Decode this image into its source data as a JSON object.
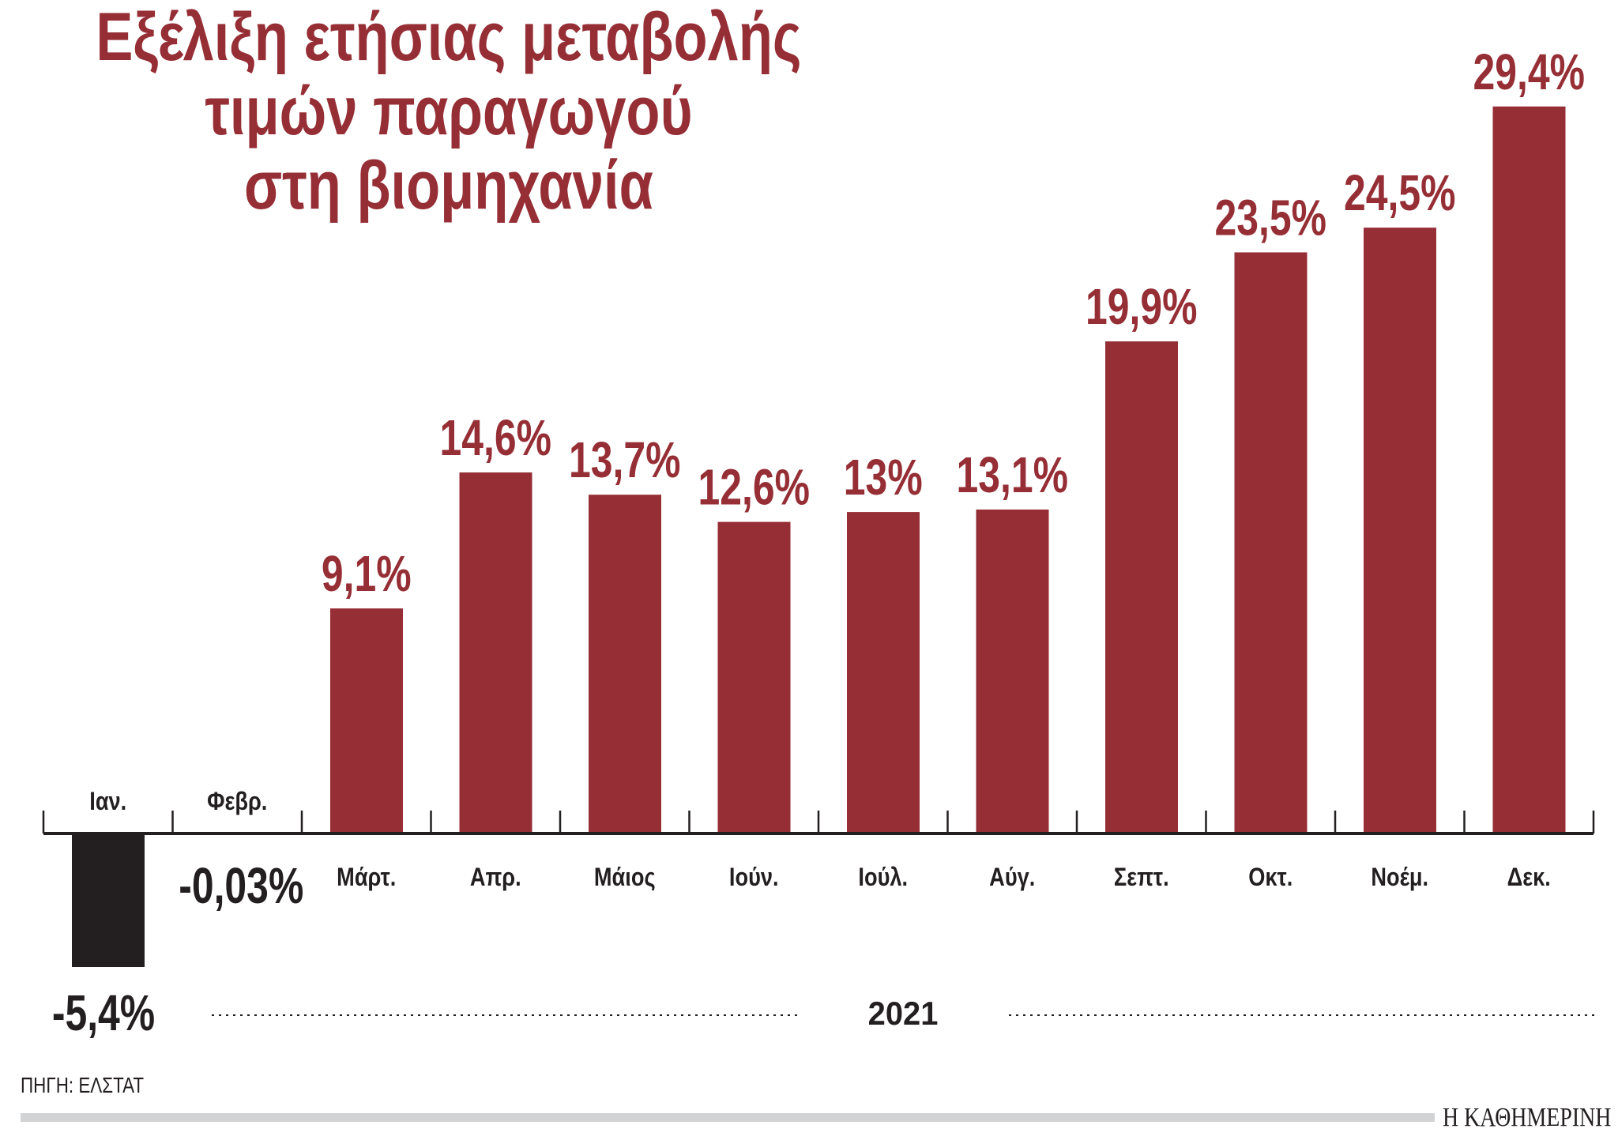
{
  "title_lines": [
    "Εξέλιξη ετήσιας μεταβολής",
    "τιμών παραγωγού",
    "στη βιομηχανία"
  ],
  "source": "ΠΗΓΗ: ΕΛΣΤΑΤ",
  "logo": "Η ΚΑΘΗΜΕΡΙΝΗ",
  "colors": {
    "positive": "#962e35",
    "negative": "#231f20",
    "text": "#231f20",
    "title": "#962e35"
  },
  "chart_data": {
    "type": "bar",
    "title": "Εξέλιξη ετήσιας μεταβολής τιμών παραγωγού στη βιομηχανία",
    "xlabel": "2021",
    "ylabel": "",
    "categories": [
      "Ιαν.",
      "Φεβρ.",
      "Μάρτ.",
      "Απρ.",
      "Μάιος",
      "Ιούν.",
      "Ιούλ.",
      "Αύγ.",
      "Σεπτ.",
      "Οκτ.",
      "Νοέμ.",
      "Δεκ."
    ],
    "values": [
      -5.4,
      -0.03,
      9.1,
      14.6,
      13.7,
      12.6,
      13,
      13.1,
      19.9,
      23.5,
      24.5,
      29.4
    ],
    "data_labels": [
      "-5,4%",
      "-0,03%",
      "9,1%",
      "14,6%",
      "13,7%",
      "12,6%",
      "13%",
      "13,1%",
      "19,9%",
      "23,5%",
      "24,5%",
      "29,4%"
    ],
    "ylim": [
      -5.4,
      29.4
    ],
    "grid": false,
    "legend": "none"
  }
}
